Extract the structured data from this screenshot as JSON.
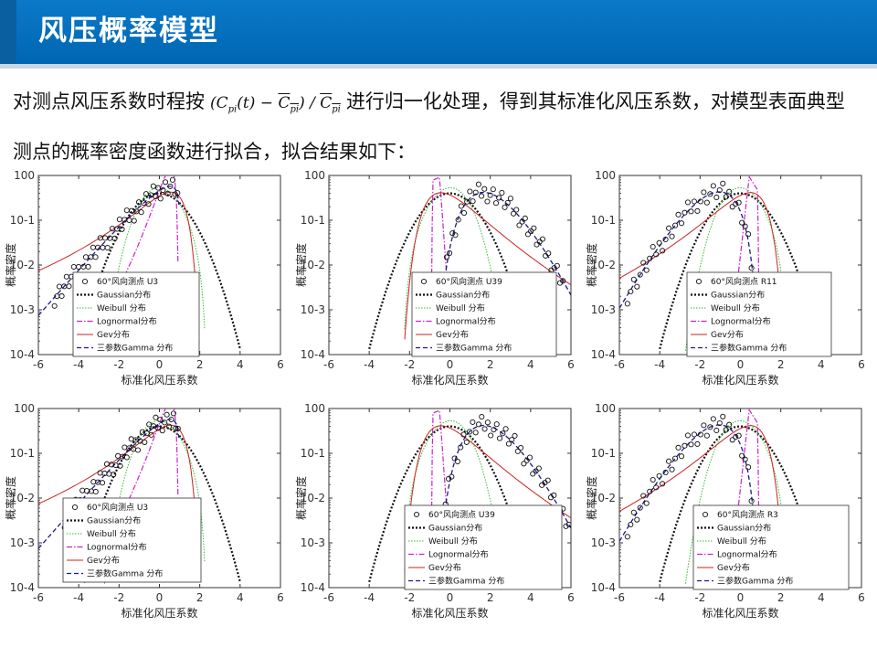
{
  "slide": {
    "title": "风压概率模型",
    "intro_before": "对测点风压系数时程按",
    "formula": {
      "c": "C",
      "pi": "pi",
      "t": "(t)",
      "minus": "−",
      "slash": "/"
    },
    "intro_after": "进行归一化处理，得到其标准化风压系数，对模型表面典型测点的概率密度函数进行拟合，拟合结果如下："
  },
  "colors": {
    "title_bg": "#0066b3",
    "gaussian": "#111111",
    "weibull": "#33bb33",
    "lognormal": "#cc22cc",
    "gev": "#cc2222",
    "gamma": "#1a1a8c",
    "points": "#111111"
  },
  "chart_data": [
    {
      "type": "line",
      "point": "U3",
      "legend": [
        "60°风向测点 U3",
        "Gaussian分布",
        "Weibull 分布",
        "Lognormal分布",
        "Gev分布",
        "三参数Gamma 分布"
      ],
      "xlabel": "标准化风压系数",
      "ylabel": "概率密度",
      "xlim": [
        -6,
        6
      ],
      "ylim": [
        0.0001,
        1
      ],
      "y_scale": "log",
      "xticks": [
        "-6",
        "-4",
        "-2",
        "0",
        "2",
        "4",
        "6"
      ],
      "yticks": [
        "10-4",
        "10-3",
        "10-2",
        "10-1",
        "100"
      ]
    },
    {
      "type": "line",
      "point": "U39",
      "legend": [
        "60°风向测点 U39",
        "Gaussian分布",
        "Weibull 分布",
        "Lognormal分布",
        "Gev分布",
        "三参数Gamma 分布"
      ],
      "xlabel": "标准化风压系数",
      "ylabel": "概率密度",
      "xlim": [
        -6,
        6
      ],
      "ylim": [
        0.0001,
        1
      ],
      "y_scale": "log",
      "xticks": [
        "-6",
        "-4",
        "-2",
        "0",
        "2",
        "4",
        "6"
      ],
      "yticks": [
        "10-4",
        "10-3",
        "10-2",
        "10-1",
        "100"
      ]
    },
    {
      "type": "line",
      "point": "R11",
      "legend": [
        "60°风向测点 R11",
        "Gaussian分布",
        "Weibull 分布",
        "Lognormal分布",
        "Gev分布",
        "三参数Gamma 分布"
      ],
      "xlabel": "标准化风压系数",
      "ylabel": "概率密度",
      "xlim": [
        -6,
        6
      ],
      "ylim": [
        0.0001,
        1
      ],
      "y_scale": "log",
      "xticks": [
        "-6",
        "-4",
        "-2",
        "0",
        "2",
        "4",
        "6"
      ],
      "yticks": [
        "10-4",
        "10-3",
        "10-2",
        "10-1",
        "100"
      ]
    },
    {
      "type": "line",
      "point": "U3",
      "legend": [
        "60°风向测点 U3",
        "Gaussian分布",
        "Weibull 分布",
        "Lognormal分布",
        "Gev分布",
        "三参数Gamma 分布"
      ],
      "xlabel": "标准化风压系数",
      "ylabel": "概率密度",
      "xlim": [
        -6,
        6
      ],
      "ylim": [
        0.0001,
        1
      ],
      "y_scale": "log",
      "xticks": [
        "-6",
        "-4",
        "-2",
        "0",
        "2",
        "4",
        "6"
      ],
      "yticks": [
        "10-4",
        "10-3",
        "10-2",
        "10-1",
        "100"
      ]
    },
    {
      "type": "line",
      "point": "U39",
      "legend": [
        "60°风向测点 U39",
        "Gaussian分布",
        "Weibull 分布",
        "Lognormal分布",
        "Gev分布",
        "三参数Gamma 分布"
      ],
      "xlabel": "标准化风压系数",
      "ylabel": "概率密度",
      "xlim": [
        -6,
        6
      ],
      "ylim": [
        0.0001,
        1
      ],
      "y_scale": "log",
      "xticks": [
        "-6",
        "-4",
        "-2",
        "0",
        "2",
        "4",
        "6"
      ],
      "yticks": [
        "10-4",
        "10-3",
        "10-2",
        "10-1",
        "100"
      ]
    },
    {
      "type": "line",
      "point": "R3",
      "legend": [
        "60°风向测点 R3",
        "Gaussian分布",
        "Weibull 分布",
        "Lognormal分布",
        "Gev分布",
        "三参数Gamma 分布"
      ],
      "xlabel": "标准化风压系数",
      "ylabel": "概率密度",
      "xlim": [
        -6,
        6
      ],
      "ylim": [
        0.0001,
        1
      ],
      "y_scale": "log",
      "xticks": [
        "-6",
        "-4",
        "-2",
        "0",
        "2",
        "4",
        "6"
      ],
      "yticks": [
        "10-4",
        "10-3",
        "10-2",
        "10-1",
        "100"
      ]
    }
  ]
}
